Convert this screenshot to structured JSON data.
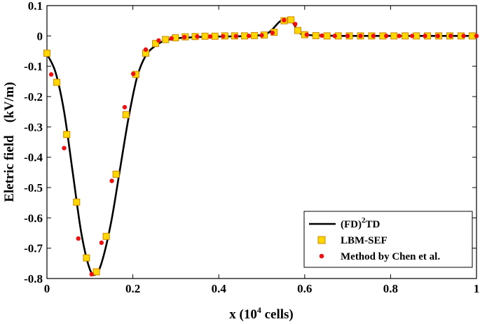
{
  "chart_data": {
    "type": "line",
    "xlabel": "x (10",
    "xlabel_sup": "4",
    "xlabel_suffix": " cells)",
    "ylabel_left": "Eletric field",
    "ylabel_right": "(kV/m)",
    "xlim": [
      0,
      1
    ],
    "ylim": [
      -0.8,
      0.1
    ],
    "xticks": [
      "0",
      "0.2",
      "0.4",
      "0.6",
      "0.8",
      "1"
    ],
    "yticks": [
      "0.1",
      "0",
      "-0.1",
      "-0.2",
      "-0.3",
      "-0.4",
      "-0.5",
      "-0.6",
      "-0.7",
      "-0.8"
    ],
    "grid": false,
    "legend_position": "bottom-right",
    "colors": {
      "line": "#000000",
      "square_fill": "#FFD700",
      "square_edge": "#CC8800",
      "dot": "#EE1111"
    },
    "series": [
      {
        "name": "(FD)",
        "name_sup": "2",
        "name_suffix": "TD",
        "style": "line",
        "x": [
          0,
          0.02,
          0.04,
          0.06,
          0.08,
          0.1,
          0.115,
          0.13,
          0.15,
          0.17,
          0.19,
          0.21,
          0.23,
          0.25,
          0.27,
          0.3,
          0.35,
          0.4,
          0.45,
          0.5,
          0.52,
          0.54,
          0.555,
          0.57,
          0.585,
          0.6,
          0.65,
          0.7,
          0.8,
          0.9,
          1.0
        ],
        "y": [
          -0.06,
          -0.12,
          -0.25,
          -0.45,
          -0.65,
          -0.77,
          -0.785,
          -0.735,
          -0.61,
          -0.44,
          -0.27,
          -0.135,
          -0.065,
          -0.035,
          -0.018,
          -0.008,
          -0.004,
          -0.002,
          -0.001,
          0.003,
          0.015,
          0.045,
          0.057,
          0.048,
          0.015,
          0.004,
          0.001,
          0.0,
          0.0,
          0.0,
          0.0
        ]
      },
      {
        "name": "LBM-SEF",
        "style": "square",
        "x": [
          0,
          0.023,
          0.046,
          0.069,
          0.092,
          0.115,
          0.138,
          0.161,
          0.184,
          0.207,
          0.23,
          0.253,
          0.276,
          0.299,
          0.322,
          0.345,
          0.368,
          0.391,
          0.414,
          0.437,
          0.46,
          0.483,
          0.506,
          0.529,
          0.552,
          0.568,
          0.584,
          0.6,
          0.626,
          0.652,
          0.678,
          0.704,
          0.73,
          0.756,
          0.782,
          0.808,
          0.834,
          0.86,
          0.886,
          0.912,
          0.938,
          0.964,
          0.99
        ],
        "y": [
          -0.057,
          -0.153,
          -0.325,
          -0.548,
          -0.732,
          -0.778,
          -0.661,
          -0.456,
          -0.26,
          -0.127,
          -0.057,
          -0.025,
          -0.012,
          -0.006,
          -0.003,
          -0.002,
          -0.001,
          -0.001,
          0.0,
          0.0,
          0.0,
          0.001,
          0.003,
          0.012,
          0.05,
          0.053,
          0.018,
          0.004,
          0.001,
          0.0,
          0.0,
          0.0,
          0.0,
          0.0,
          0.0,
          0.0,
          0.0,
          0.0,
          0.0,
          0.0,
          0.0,
          0.0,
          0.0
        ]
      },
      {
        "name": "Method by Chen et al.",
        "style": "dot",
        "x": [
          0.01,
          0.04,
          0.073,
          0.104,
          0.127,
          0.151,
          0.181,
          0.201,
          0.23,
          0.26,
          0.29,
          0.32,
          0.35,
          0.38,
          0.41,
          0.44,
          0.47,
          0.5,
          0.525,
          0.552,
          0.578,
          0.605,
          0.64,
          0.67,
          0.7,
          0.73,
          0.76,
          0.79,
          0.82,
          0.85,
          0.88,
          0.91,
          0.94,
          0.97,
          1.0
        ],
        "y": [
          -0.127,
          -0.37,
          -0.668,
          -0.786,
          -0.682,
          -0.478,
          -0.235,
          -0.125,
          -0.045,
          -0.015,
          -0.008,
          -0.004,
          -0.002,
          -0.002,
          -0.001,
          -0.001,
          0.0,
          0.002,
          0.01,
          0.052,
          0.039,
          0.004,
          0.001,
          0.0,
          0.0,
          0.0,
          0.0,
          0.0,
          0.0,
          0.0,
          0.0,
          0.0,
          0.0,
          0.0,
          0.0
        ]
      }
    ]
  }
}
